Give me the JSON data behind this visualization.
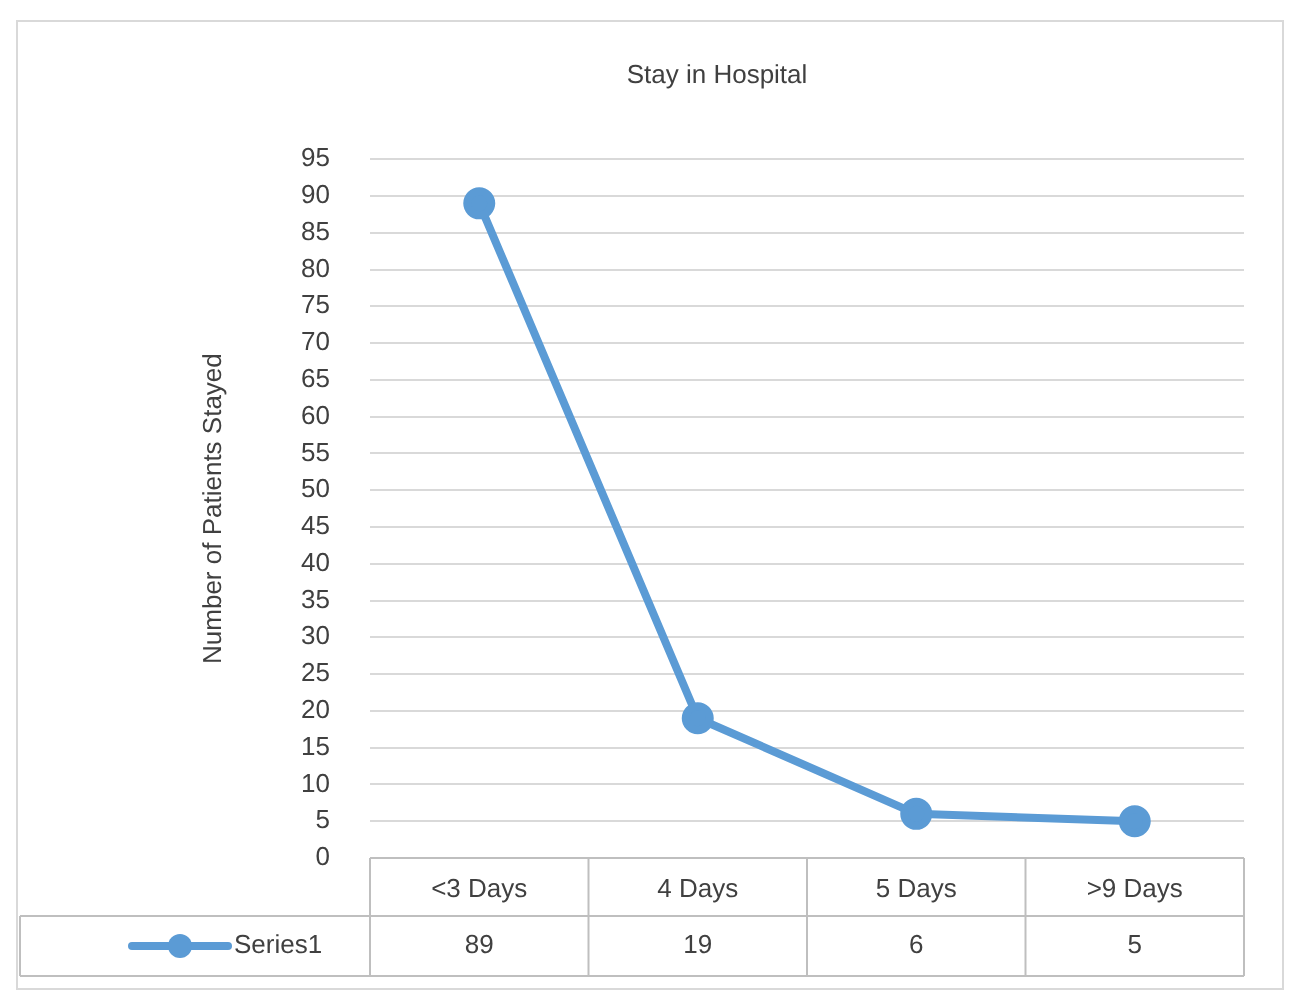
{
  "chart_data": {
    "type": "line",
    "title": "Stay in Hospital",
    "ylabel": "Number of Patients Stayed",
    "categories": [
      "<3 Days",
      "4 Days",
      "5 Days",
      ">9 Days"
    ],
    "series": [
      {
        "name": "Series1",
        "color": "#5b9bd5",
        "values": [
          89,
          19,
          6,
          5
        ]
      }
    ],
    "ylim": [
      0,
      95
    ],
    "yticks": [
      0,
      5,
      10,
      15,
      20,
      25,
      30,
      35,
      40,
      45,
      50,
      55,
      60,
      65,
      70,
      75,
      80,
      85,
      90,
      95
    ],
    "grid": "y",
    "marker": "circle",
    "line_style": "solid",
    "data_labels": true,
    "legend": "bottom"
  }
}
